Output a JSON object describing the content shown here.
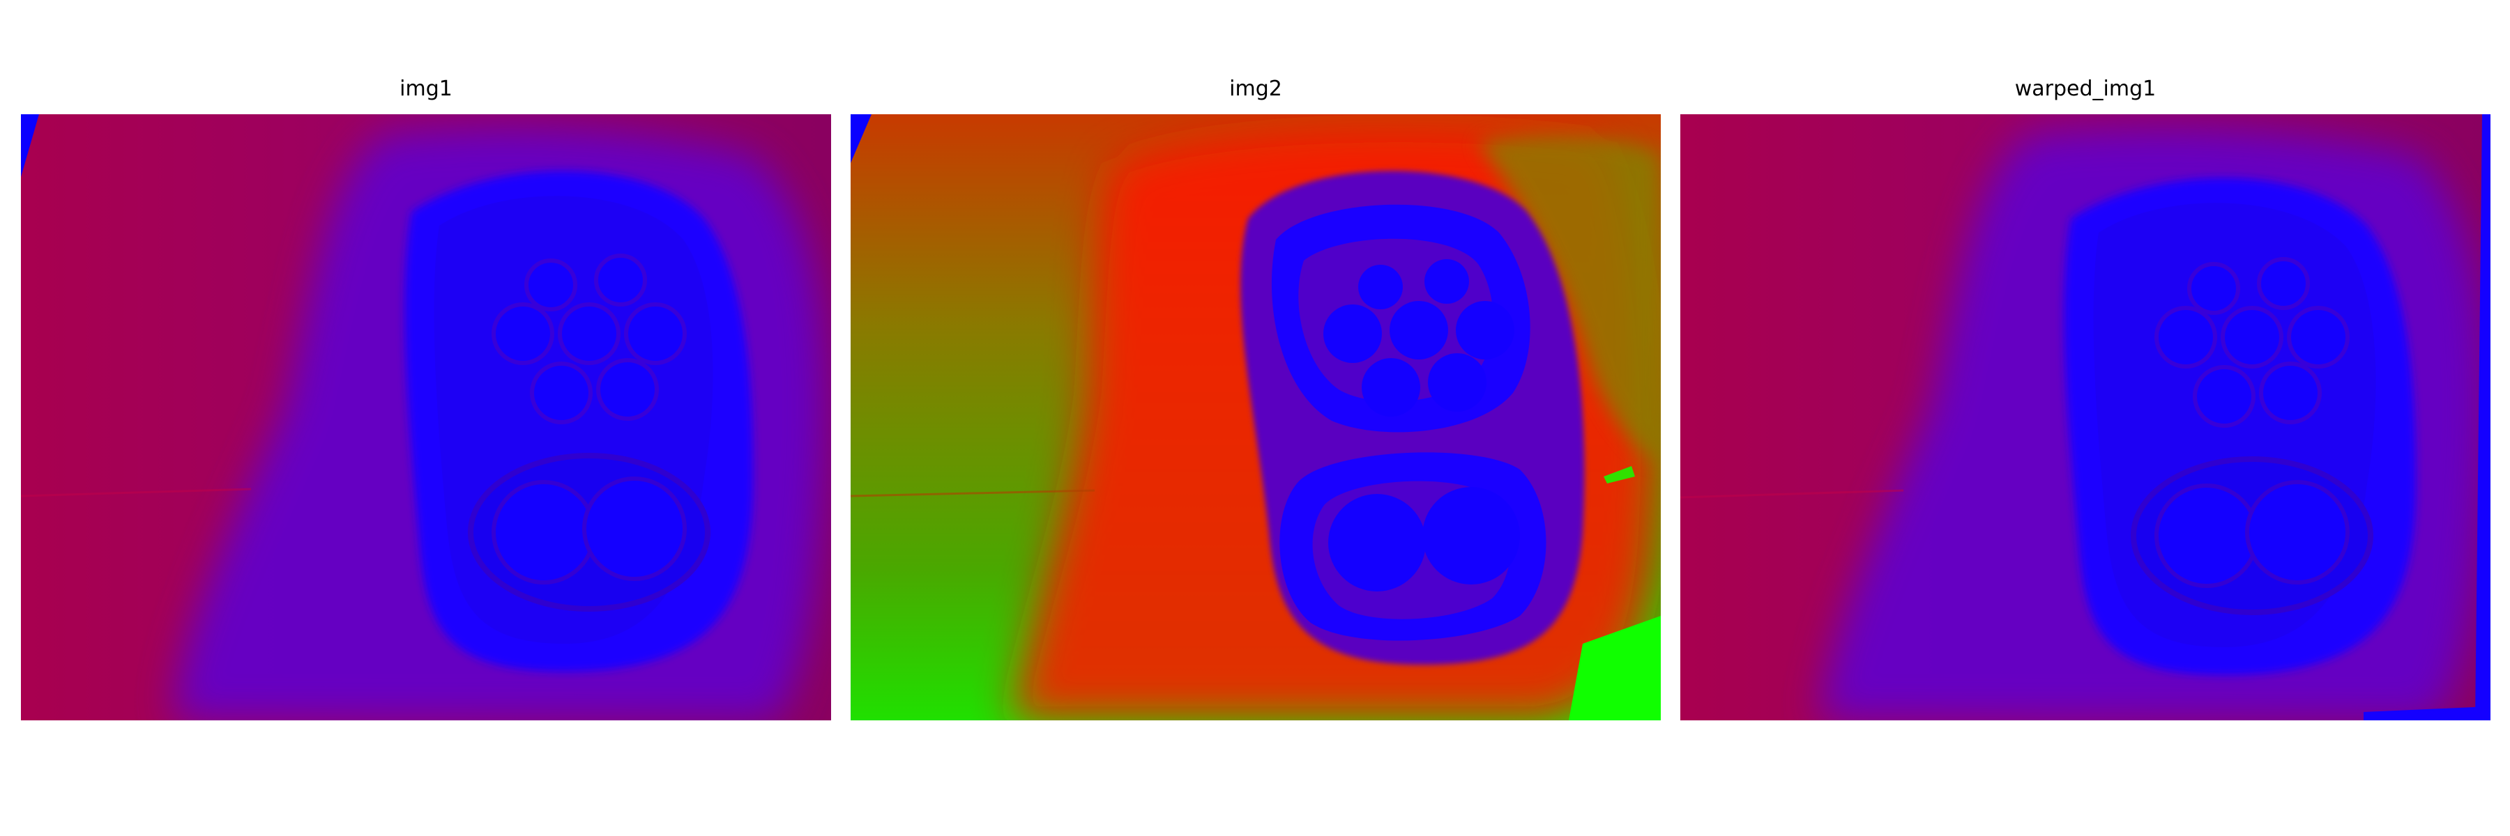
{
  "panels": [
    {
      "title": "img1"
    },
    {
      "title": "img2"
    },
    {
      "title": "warped_img1"
    }
  ]
}
